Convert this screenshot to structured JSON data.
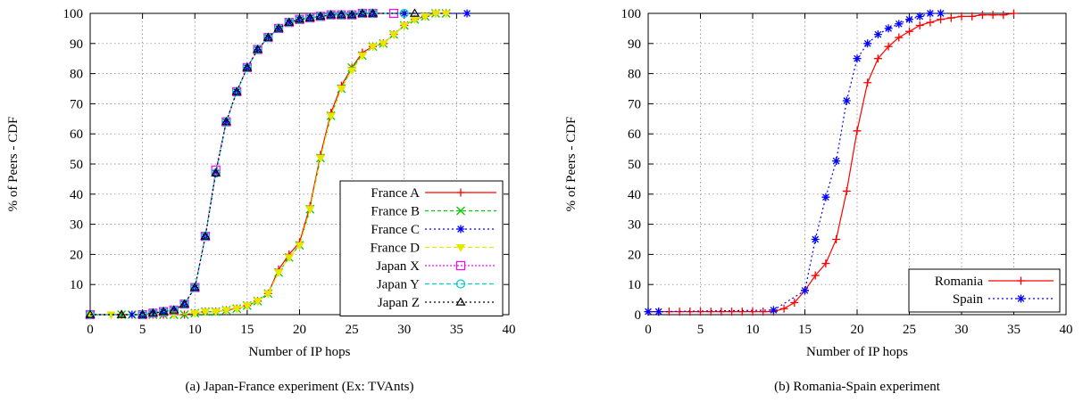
{
  "chart_data": [
    {
      "type": "line",
      "caption": "(a) Japan-France experiment (Ex: TVAnts)",
      "xlabel": "Number of IP hops",
      "ylabel": "% of Peers - CDF",
      "xlim": [
        0,
        40
      ],
      "ylim": [
        0,
        100
      ],
      "xticks": [
        "0",
        "5",
        "10",
        "15",
        "20",
        "25",
        "30",
        "35",
        "40"
      ],
      "yticks": [
        "10",
        "20",
        "30",
        "40",
        "50",
        "60",
        "70",
        "80",
        "90",
        "100"
      ],
      "grid": true,
      "legend": "right-middle",
      "series": [
        {
          "name": "France A",
          "color": "#ff0000",
          "dash": "",
          "marker": "plus",
          "x": [
            0,
            3,
            5,
            6,
            7,
            8,
            9,
            10,
            11,
            12,
            13,
            14,
            15,
            16,
            17,
            18,
            19,
            20,
            21,
            22,
            23,
            24,
            25,
            26,
            27,
            28,
            29,
            30,
            31,
            32,
            33,
            34
          ],
          "y": [
            0,
            0,
            0,
            0,
            0,
            0,
            0,
            0.5,
            1,
            1,
            1.5,
            2,
            3,
            4.5,
            7,
            15,
            20,
            24,
            36,
            53,
            67,
            76,
            82,
            87,
            89,
            90,
            93,
            96,
            98,
            99,
            100,
            100
          ]
        },
        {
          "name": "France B",
          "color": "#00cc00",
          "dash": "4,3",
          "marker": "cross",
          "x": [
            0,
            3,
            4,
            6,
            7,
            8,
            9,
            10,
            11,
            12,
            13,
            14,
            15,
            16,
            17,
            18,
            19,
            20,
            21,
            22,
            23,
            24,
            25,
            26,
            27,
            28,
            29,
            30,
            31,
            32,
            33,
            34
          ],
          "y": [
            0,
            0,
            0,
            0,
            0,
            0,
            0,
            0.5,
            1,
            1,
            1.5,
            2,
            3,
            4.5,
            7,
            14,
            19,
            23,
            35,
            52,
            66,
            75,
            82,
            86,
            89,
            90,
            93,
            96,
            98,
            99,
            100,
            100
          ]
        },
        {
          "name": "France C",
          "color": "#0000ff",
          "dash": "2,3",
          "marker": "star",
          "x": [
            0,
            4,
            5,
            6,
            7,
            8,
            9,
            10,
            11,
            12,
            13,
            14,
            15,
            16,
            17,
            18,
            19,
            20,
            21,
            22,
            23,
            24,
            25,
            26,
            27,
            30,
            36
          ],
          "y": [
            0,
            0,
            0,
            0.5,
            1,
            1.5,
            3.5,
            9,
            26,
            47,
            64,
            74,
            82,
            88,
            92,
            95,
            97,
            98,
            98.5,
            99,
            99.5,
            99.5,
            99.5,
            100,
            100,
            100,
            100
          ]
        },
        {
          "name": "France D",
          "color": "#e6e600",
          "dash": "5,3",
          "marker": "triangle-down",
          "x": [
            0,
            2,
            8,
            10,
            11,
            12,
            13,
            14,
            15,
            16,
            17,
            18,
            19,
            20,
            21,
            22,
            23,
            24,
            25,
            26,
            27,
            28,
            29,
            30,
            31,
            32,
            33,
            34
          ],
          "y": [
            0,
            0,
            0,
            0.5,
            1,
            1,
            1.5,
            2,
            3,
            4.5,
            7,
            14,
            19,
            23,
            35,
            52,
            66,
            75,
            81,
            86,
            89,
            90,
            93,
            96,
            98,
            99,
            100,
            100
          ]
        },
        {
          "name": "Japan X",
          "color": "#ff00ff",
          "dash": "2,2",
          "marker": "square",
          "x": [
            0,
            5,
            6,
            7,
            8,
            9,
            10,
            11,
            12,
            13,
            14,
            15,
            16,
            17,
            18,
            19,
            20,
            21,
            22,
            23,
            24,
            25,
            26,
            27,
            29
          ],
          "y": [
            0,
            0,
            0.5,
            1,
            1.5,
            3.5,
            9,
            26,
            48,
            64,
            74,
            82,
            88,
            92,
            95,
            97,
            98,
            98.5,
            99,
            99.5,
            99.5,
            99.5,
            100,
            100,
            100
          ]
        },
        {
          "name": "Japan Y",
          "color": "#00cccc",
          "dash": "5,3",
          "marker": "circle",
          "x": [
            0,
            5,
            6,
            7,
            8,
            9,
            10,
            11,
            12,
            13,
            14,
            15,
            16,
            17,
            18,
            19,
            20,
            21,
            22,
            23,
            24,
            25,
            26,
            27,
            30
          ],
          "y": [
            0,
            0,
            0.5,
            1,
            1.5,
            3.5,
            9,
            26,
            47,
            64,
            74,
            82,
            88,
            92,
            95,
            97,
            98,
            98.5,
            99,
            99.5,
            99.5,
            99.5,
            100,
            100,
            100
          ]
        },
        {
          "name": "Japan Z",
          "color": "#000000",
          "dash": "2,3",
          "marker": "triangle",
          "x": [
            0,
            3,
            5,
            6,
            7,
            8,
            9,
            10,
            11,
            12,
            13,
            14,
            15,
            16,
            17,
            18,
            19,
            20,
            21,
            22,
            23,
            24,
            25,
            26,
            27,
            31
          ],
          "y": [
            0,
            0,
            0,
            0.5,
            1,
            1.5,
            3.5,
            9,
            26,
            47,
            64,
            74,
            82,
            88,
            92,
            95,
            97,
            98,
            98.5,
            99,
            99.5,
            99.5,
            99.5,
            100,
            100,
            100
          ]
        }
      ]
    },
    {
      "type": "line",
      "caption": "(b) Romania-Spain experiment",
      "xlabel": "Number of IP hops",
      "ylabel": "% of Peers - CDF",
      "xlim": [
        0,
        40
      ],
      "ylim": [
        0,
        100
      ],
      "xticks": [
        "0",
        "5",
        "10",
        "15",
        "20",
        "25",
        "30",
        "35",
        "40"
      ],
      "yticks": [
        "0",
        "10",
        "20",
        "30",
        "40",
        "50",
        "60",
        "70",
        "80",
        "90",
        "100"
      ],
      "grid": true,
      "legend": "bottom-right",
      "series": [
        {
          "name": "Romania",
          "color": "#ff0000",
          "dash": "",
          "marker": "plus",
          "x": [
            0,
            1,
            2,
            3,
            4,
            5,
            6,
            7,
            8,
            9,
            10,
            11,
            12,
            13,
            14,
            15,
            16,
            17,
            18,
            19,
            20,
            21,
            22,
            23,
            24,
            25,
            26,
            27,
            28,
            29,
            30,
            31,
            32,
            33,
            34,
            35
          ],
          "y": [
            1,
            1,
            1,
            1,
            1,
            1,
            1,
            1,
            1,
            1,
            1,
            1,
            1,
            2,
            4,
            8,
            13,
            17,
            25,
            41,
            61,
            77,
            85,
            89,
            92,
            94,
            96,
            97,
            98,
            98.5,
            99,
            99,
            99.5,
            99.5,
            99.5,
            100
          ]
        },
        {
          "name": "Spain",
          "color": "#0000ff",
          "dash": "2,3",
          "marker": "star",
          "x": [
            0,
            1,
            12,
            15,
            16,
            17,
            18,
            19,
            20,
            21,
            22,
            23,
            24,
            25,
            26,
            27,
            28
          ],
          "y": [
            1,
            1,
            1.5,
            8,
            25,
            39,
            51,
            71,
            85,
            90,
            93,
            95,
            96.5,
            98,
            99,
            100,
            100
          ]
        }
      ]
    }
  ]
}
